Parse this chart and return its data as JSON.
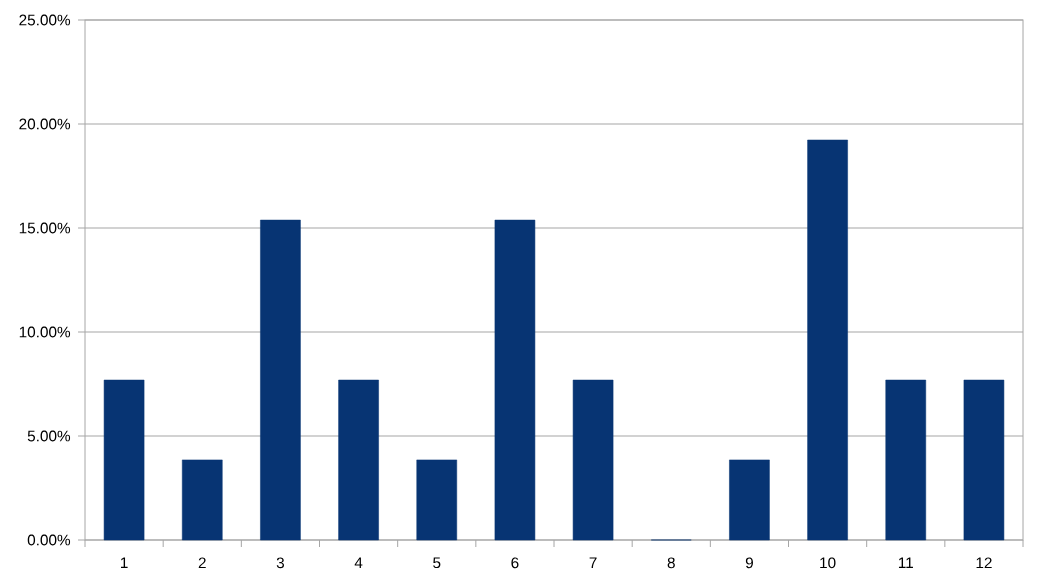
{
  "chart_data": {
    "type": "bar",
    "categories": [
      "1",
      "2",
      "3",
      "4",
      "5",
      "6",
      "7",
      "8",
      "9",
      "10",
      "11",
      "12"
    ],
    "values": [
      7.69,
      3.85,
      15.38,
      7.69,
      3.85,
      15.38,
      7.69,
      0,
      3.85,
      19.23,
      7.69,
      7.69
    ],
    "color": "#073473",
    "ylim": [
      0,
      25
    ],
    "yticks": [
      {
        "value": 0,
        "label": "0.00%"
      },
      {
        "value": 5,
        "label": "5.00%"
      },
      {
        "value": 10,
        "label": "10.00%"
      },
      {
        "value": 15,
        "label": "15.00%"
      },
      {
        "value": 20,
        "label": "20.00%"
      },
      {
        "value": 25,
        "label": "25.00%"
      }
    ],
    "grid": "y"
  }
}
